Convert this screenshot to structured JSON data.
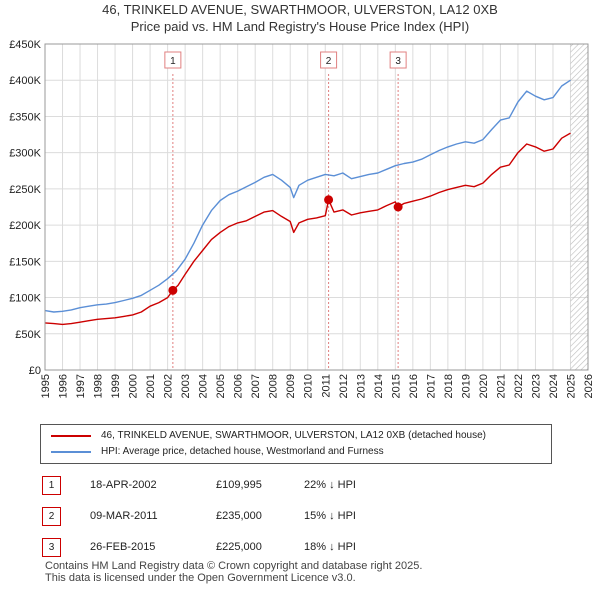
{
  "title_line1": "46, TRINKELD AVENUE, SWARTHMOOR, ULVERSTON, LA12 0XB",
  "title_line2": "Price paid vs. HM Land Registry's House Price Index (HPI)",
  "colors": {
    "price": "#cc0000",
    "hpi": "#5b8fd6",
    "grid": "#dcdcdc",
    "event": "#e08080",
    "hatch": "#bbbbbb"
  },
  "chart_data": {
    "type": "line",
    "title": "Price paid vs. HM Land Registry's House Price Index (HPI)",
    "xlabel": "",
    "ylabel": "",
    "xlim": [
      1995,
      2026
    ],
    "ylim": [
      0,
      450000
    ],
    "y_ticks": [
      {
        "value": 0,
        "label": "£0"
      },
      {
        "value": 50000,
        "label": "£50K"
      },
      {
        "value": 100000,
        "label": "£100K"
      },
      {
        "value": 150000,
        "label": "£150K"
      },
      {
        "value": 200000,
        "label": "£200K"
      },
      {
        "value": 250000,
        "label": "£250K"
      },
      {
        "value": 300000,
        "label": "£300K"
      },
      {
        "value": 350000,
        "label": "£350K"
      },
      {
        "value": 400000,
        "label": "£400K"
      },
      {
        "value": 450000,
        "label": "£450K"
      }
    ],
    "x_ticks": [
      "1995",
      "1996",
      "1997",
      "1998",
      "1999",
      "2000",
      "2001",
      "2002",
      "2003",
      "2004",
      "2005",
      "2006",
      "2007",
      "2008",
      "2009",
      "2010",
      "2011",
      "2012",
      "2013",
      "2014",
      "2015",
      "2016",
      "2017",
      "2018",
      "2019",
      "2020",
      "2021",
      "2022",
      "2023",
      "2024",
      "2025",
      "2026"
    ],
    "forecast_start": 2025.0,
    "series": [
      {
        "name": "46, TRINKELD AVENUE, SWARTHMOOR, ULVERSTON, LA12 0XB (detached house)",
        "color": "#cc0000",
        "points": [
          [
            1995.0,
            65000
          ],
          [
            1995.5,
            64000
          ],
          [
            1996.0,
            63000
          ],
          [
            1996.5,
            64000
          ],
          [
            1997.0,
            66000
          ],
          [
            1997.5,
            68000
          ],
          [
            1998.0,
            70000
          ],
          [
            1998.5,
            71000
          ],
          [
            1999.0,
            72000
          ],
          [
            1999.5,
            74000
          ],
          [
            2000.0,
            76000
          ],
          [
            2000.5,
            80000
          ],
          [
            2001.0,
            88000
          ],
          [
            2001.5,
            93000
          ],
          [
            2002.0,
            100000
          ],
          [
            2002.3,
            109995
          ],
          [
            2002.6,
            117000
          ],
          [
            2003.0,
            132000
          ],
          [
            2003.5,
            150000
          ],
          [
            2004.0,
            165000
          ],
          [
            2004.5,
            180000
          ],
          [
            2005.0,
            190000
          ],
          [
            2005.5,
            198000
          ],
          [
            2006.0,
            203000
          ],
          [
            2006.5,
            206000
          ],
          [
            2007.0,
            212000
          ],
          [
            2007.5,
            218000
          ],
          [
            2008.0,
            220000
          ],
          [
            2008.5,
            212000
          ],
          [
            2009.0,
            205000
          ],
          [
            2009.2,
            190000
          ],
          [
            2009.5,
            203000
          ],
          [
            2010.0,
            208000
          ],
          [
            2010.5,
            210000
          ],
          [
            2011.0,
            213000
          ],
          [
            2011.19,
            235000
          ],
          [
            2011.5,
            218000
          ],
          [
            2012.0,
            221000
          ],
          [
            2012.5,
            214000
          ],
          [
            2013.0,
            217000
          ],
          [
            2013.5,
            219000
          ],
          [
            2014.0,
            221000
          ],
          [
            2014.5,
            227000
          ],
          [
            2015.0,
            232000
          ],
          [
            2015.16,
            225000
          ],
          [
            2015.5,
            230000
          ],
          [
            2016.0,
            233000
          ],
          [
            2016.5,
            236000
          ],
          [
            2017.0,
            240000
          ],
          [
            2017.5,
            245000
          ],
          [
            2018.0,
            249000
          ],
          [
            2018.5,
            252000
          ],
          [
            2019.0,
            255000
          ],
          [
            2019.5,
            253000
          ],
          [
            2020.0,
            258000
          ],
          [
            2020.5,
            270000
          ],
          [
            2021.0,
            280000
          ],
          [
            2021.5,
            283000
          ],
          [
            2022.0,
            300000
          ],
          [
            2022.5,
            312000
          ],
          [
            2023.0,
            308000
          ],
          [
            2023.5,
            302000
          ],
          [
            2024.0,
            305000
          ],
          [
            2024.5,
            320000
          ],
          [
            2025.0,
            327000
          ]
        ]
      },
      {
        "name": "HPI: Average price, detached house, Westmorland and Furness",
        "color": "#5b8fd6",
        "points": [
          [
            1995.0,
            82000
          ],
          [
            1995.5,
            80000
          ],
          [
            1996.0,
            81000
          ],
          [
            1996.5,
            83000
          ],
          [
            1997.0,
            86000
          ],
          [
            1997.5,
            88000
          ],
          [
            1998.0,
            90000
          ],
          [
            1998.5,
            91000
          ],
          [
            1999.0,
            93000
          ],
          [
            1999.5,
            96000
          ],
          [
            2000.0,
            99000
          ],
          [
            2000.5,
            103000
          ],
          [
            2001.0,
            110000
          ],
          [
            2001.5,
            117000
          ],
          [
            2002.0,
            126000
          ],
          [
            2002.5,
            137000
          ],
          [
            2003.0,
            153000
          ],
          [
            2003.5,
            175000
          ],
          [
            2004.0,
            200000
          ],
          [
            2004.5,
            220000
          ],
          [
            2005.0,
            234000
          ],
          [
            2005.5,
            242000
          ],
          [
            2006.0,
            247000
          ],
          [
            2006.5,
            253000
          ],
          [
            2007.0,
            259000
          ],
          [
            2007.5,
            266000
          ],
          [
            2008.0,
            270000
          ],
          [
            2008.5,
            262000
          ],
          [
            2009.0,
            252000
          ],
          [
            2009.2,
            238000
          ],
          [
            2009.5,
            255000
          ],
          [
            2010.0,
            262000
          ],
          [
            2010.5,
            266000
          ],
          [
            2011.0,
            270000
          ],
          [
            2011.5,
            268000
          ],
          [
            2012.0,
            272000
          ],
          [
            2012.5,
            264000
          ],
          [
            2013.0,
            267000
          ],
          [
            2013.5,
            270000
          ],
          [
            2014.0,
            272000
          ],
          [
            2014.5,
            277000
          ],
          [
            2015.0,
            282000
          ],
          [
            2015.5,
            285000
          ],
          [
            2016.0,
            287000
          ],
          [
            2016.5,
            291000
          ],
          [
            2017.0,
            297000
          ],
          [
            2017.5,
            303000
          ],
          [
            2018.0,
            308000
          ],
          [
            2018.5,
            312000
          ],
          [
            2019.0,
            315000
          ],
          [
            2019.5,
            313000
          ],
          [
            2020.0,
            318000
          ],
          [
            2020.5,
            332000
          ],
          [
            2021.0,
            345000
          ],
          [
            2021.5,
            348000
          ],
          [
            2022.0,
            370000
          ],
          [
            2022.5,
            385000
          ],
          [
            2023.0,
            378000
          ],
          [
            2023.5,
            373000
          ],
          [
            2024.0,
            376000
          ],
          [
            2024.5,
            392000
          ],
          [
            2025.0,
            400000
          ]
        ]
      }
    ],
    "events": [
      {
        "label": "1",
        "x": 2002.3,
        "price": 109995
      },
      {
        "label": "2",
        "x": 2011.19,
        "price": 235000
      },
      {
        "label": "3",
        "x": 2015.16,
        "price": 225000
      }
    ]
  },
  "legend": {
    "price_label": "46, TRINKELD AVENUE, SWARTHMOOR, ULVERSTON, LA12 0XB (detached house)",
    "hpi_label": "HPI: Average price, detached house, Westmorland and Furness"
  },
  "transactions": [
    {
      "num": "1",
      "date": "18-APR-2002",
      "price": "£109,995",
      "hpi": "22% ↓ HPI"
    },
    {
      "num": "2",
      "date": "09-MAR-2011",
      "price": "£235,000",
      "hpi": "15% ↓ HPI"
    },
    {
      "num": "3",
      "date": "26-FEB-2015",
      "price": "£225,000",
      "hpi": "18% ↓ HPI"
    }
  ],
  "footer": {
    "line1": "Contains HM Land Registry data © Crown copyright and database right 2025.",
    "line2": "This data is licensed under the Open Government Licence v3.0."
  }
}
